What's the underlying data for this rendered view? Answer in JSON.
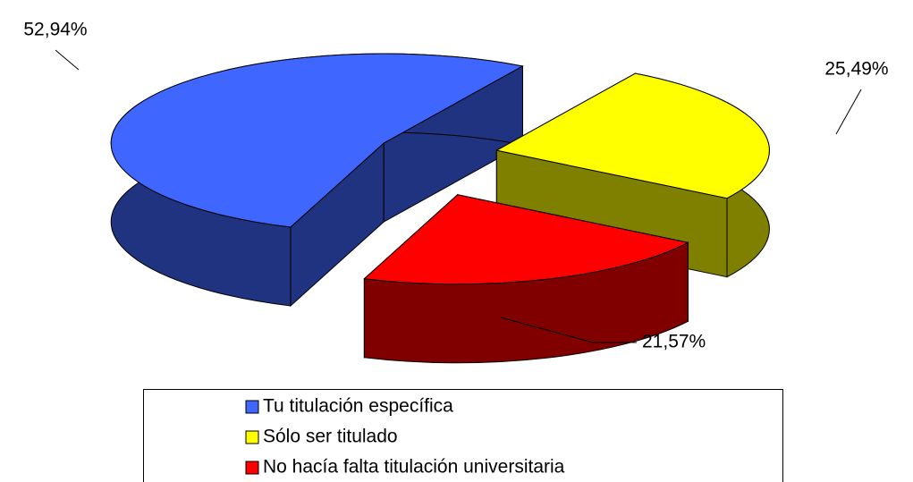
{
  "chart_data": {
    "type": "pie3d",
    "categories": [
      "Tu titulación específica",
      "Sólo ser titulado",
      "No hacía falta titulación universitaria"
    ],
    "values": [
      52.94,
      25.49,
      21.57
    ],
    "value_labels": [
      "52,94%",
      "25,49%",
      "21,57%"
    ],
    "colors": [
      "#3f66ff",
      "#ffff00",
      "#ff0000"
    ],
    "legend": "bottom"
  }
}
